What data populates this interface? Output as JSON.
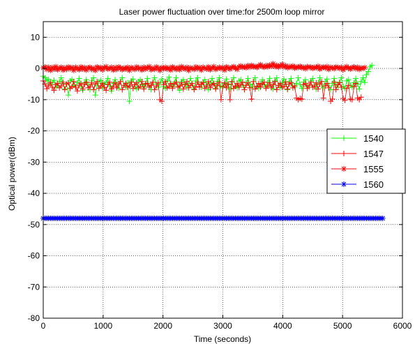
{
  "chart_data": {
    "type": "line",
    "title": "Laser power fluctuation over time:for 2500m loop mirror",
    "xlabel": "Time (seconds)",
    "ylabel": "Optical power(dBm)",
    "xlim": [
      0,
      6000
    ],
    "ylim": [
      -80,
      15
    ],
    "xticks": [
      0,
      1000,
      2000,
      3000,
      4000,
      5000,
      6000
    ],
    "yticks": [
      -80,
      -70,
      -60,
      -50,
      -40,
      -30,
      -20,
      -10,
      0,
      10
    ],
    "grid": true,
    "legend_position": "right",
    "sample_interval_s": 30,
    "series": [
      {
        "name": "1540",
        "color": "#00ff00",
        "marker": "plus",
        "values": [
          -2.5,
          -3.0,
          -4.0,
          -3.5,
          -5.0,
          -4.5,
          -3.8,
          -6.0,
          -5.5,
          -4.2,
          -3.0,
          -4.8,
          -6.5,
          -5.0,
          -8.5,
          -4.0,
          -3.5,
          -5.5,
          -6.0,
          -4.5,
          -3.2,
          -5.8,
          -7.0,
          -4.6,
          -3.6,
          -5.2,
          -6.8,
          -4.0,
          -3.0,
          -8.5,
          -5.5,
          -4.2,
          -3.8,
          -6.2,
          -5.0,
          -4.4,
          -3.2,
          -5.6,
          -7.2,
          -4.8,
          -3.6,
          -5.0,
          -6.4,
          -4.2,
          -3.0,
          -5.4,
          -6.0,
          -4.6,
          -10.5,
          -4.0,
          -3.4,
          -5.8,
          -6.6,
          -4.2,
          -3.6,
          -5.2,
          -6.2,
          -4.8,
          -3.2,
          -5.6,
          -6.8,
          -4.4,
          -3.0,
          -5.0,
          -6.0,
          -4.6,
          -3.4,
          -5.8,
          -6.4,
          -4.0,
          -2.8,
          -5.2,
          -6.0,
          -4.4,
          -3.0,
          -5.6,
          -7.0,
          -4.2,
          -3.6,
          -5.0,
          -6.2,
          -4.8,
          -3.2,
          -5.4,
          -6.6,
          -4.0,
          -3.0,
          -5.8,
          -6.0,
          -4.4,
          -3.6,
          -5.2,
          -6.8,
          -4.6,
          -3.2,
          -5.0,
          -6.4,
          -4.2,
          -3.0,
          -5.6,
          -6.0,
          -4.8,
          -3.4,
          -5.2,
          -6.6,
          -4.4,
          -3.0,
          -5.8,
          -6.2,
          -4.0,
          -3.6,
          -5.4,
          -6.8,
          -4.6,
          -3.2,
          -5.0,
          -6.0,
          -4.2,
          -3.0,
          -5.6,
          -6.4,
          -4.8,
          -3.6,
          -5.2,
          -6.0,
          -4.4,
          -3.2,
          -5.8,
          -6.6,
          -4.0,
          -3.0,
          -5.4,
          -6.2,
          -4.6,
          -3.4,
          -5.0,
          -6.8,
          -4.2,
          -3.2,
          -5.6,
          -6.0,
          -4.8,
          -3.0,
          -5.2,
          -6.4,
          -4.4,
          -3.6,
          -5.8,
          -6.0,
          -4.0,
          -3.2,
          -5.4,
          -6.6,
          -4.6,
          -3.0,
          -5.0,
          -6.2,
          -4.2,
          -3.4,
          -5.6,
          -6.8,
          -4.8,
          -3.2,
          -5.2,
          -6.0,
          -4.4,
          -3.0,
          -5.8,
          -6.4,
          -4.0,
          -3.6,
          -5.4,
          -6.0,
          -4.6,
          -3.2,
          -5.0,
          -6.6,
          -4.2,
          -3.0,
          -4.5,
          -2.0,
          -1.0,
          0.5,
          1.0
        ]
      },
      {
        "name": "1547",
        "color": "#ff0000",
        "marker": "plus",
        "values": [
          -4.0,
          -5.0,
          -6.5,
          -5.5,
          -4.5,
          -6.0,
          -7.0,
          -5.2,
          -4.8,
          -6.2,
          -5.6,
          -4.4,
          -6.8,
          -5.0,
          -4.6,
          -6.4,
          -5.8,
          -4.2,
          -6.0,
          -7.2,
          -5.4,
          -4.8,
          -6.6,
          -5.2,
          -4.4,
          -6.2,
          -5.8,
          -4.6,
          -6.8,
          -5.0,
          -4.2,
          -6.4,
          -5.6,
          -4.8,
          -6.0,
          -7.0,
          -5.2,
          -4.4,
          -6.6,
          -5.8,
          -4.6,
          -6.2,
          -5.0,
          -4.2,
          -6.8,
          -5.4,
          -4.8,
          -6.0,
          -5.6,
          -4.4,
          -6.4,
          -5.2,
          -4.6,
          -6.2,
          -5.8,
          -4.2,
          -6.6,
          -5.0,
          -4.8,
          -6.0,
          -5.4,
          -4.4,
          -6.8,
          -5.6,
          -4.6,
          -10.0,
          -10.5,
          -5.2,
          -4.2,
          -6.2,
          -5.8,
          -4.8,
          -6.4,
          -5.0,
          -4.4,
          -6.0,
          -5.6,
          -4.6,
          -6.6,
          -5.2,
          -4.2,
          -6.2,
          -5.4,
          -4.8,
          -6.8,
          -5.8,
          -4.4,
          -6.0,
          -5.0,
          -4.6,
          -6.4,
          -5.6,
          -4.2,
          -6.2,
          -5.2,
          -4.8,
          -6.6,
          -5.4,
          -4.4,
          -10.0,
          -5.8,
          -4.6,
          -6.2,
          -5.0,
          -10.0,
          -4.2,
          -6.4,
          -5.6,
          -4.8,
          -6.0,
          -5.2,
          -4.4,
          -6.8,
          -5.4,
          -4.6,
          -6.2,
          -9.8,
          -4.2,
          -6.6,
          -5.8,
          -4.8,
          -6.0,
          -5.0,
          -4.4,
          -6.4,
          -5.6,
          -4.6,
          -6.2,
          -5.2,
          -4.2,
          -6.8,
          -5.4,
          -4.8,
          -6.0,
          -5.8,
          -4.4,
          -6.6,
          -5.0,
          -4.6,
          -6.2,
          -5.6,
          -9.5,
          -10.0,
          -9.6,
          -9.8,
          -5.2,
          -4.8,
          -6.4,
          -5.4,
          -4.4,
          -6.0,
          -5.8,
          -4.6,
          -6.6,
          -5.0,
          -4.2,
          -9.5,
          -5.6,
          -4.8,
          -6.2,
          -10.5,
          -9.8,
          -4.4,
          -6.8,
          -5.2,
          -4.6,
          -6.0,
          -9.6,
          -10.2,
          -6.4,
          -5.4,
          -9.8,
          -10.0,
          -5.8,
          -4.8,
          -9.5,
          -10.0,
          -9.2
        ]
      },
      {
        "name": "1555",
        "color": "#ff0000",
        "marker": "asterisk",
        "values": [
          0.2,
          0.5,
          -0.3,
          0.4,
          -0.6,
          0.3,
          -0.2,
          0.6,
          -0.4,
          0.1,
          0.4,
          -0.5,
          0.2,
          -0.3,
          0.5,
          -0.1,
          0.3,
          -0.6,
          0.4,
          0.0,
          -0.4,
          0.5,
          -0.2,
          0.3,
          -0.5,
          0.2,
          0.4,
          -0.3,
          0.1,
          -0.6,
          0.5,
          -0.1,
          0.3,
          -0.4,
          0.2,
          0.6,
          -0.2,
          0.0,
          0.4,
          -0.5,
          0.3,
          -0.3,
          0.5,
          0.1,
          -0.4,
          0.2,
          -0.2,
          0.4,
          -0.6,
          0.3,
          0.0,
          -0.3,
          0.5,
          -0.1,
          0.2,
          -0.5,
          0.4,
          -0.2,
          0.3,
          0.6,
          -0.4,
          0.1,
          -0.3,
          0.5,
          0.0,
          -0.6,
          0.3,
          -0.1,
          0.4,
          -0.2,
          0.2,
          -0.5,
          0.5,
          0.0,
          -0.3,
          0.3,
          -0.4,
          0.6,
          0.1,
          -0.2,
          0.4,
          -0.6,
          0.2,
          0.0,
          -0.3,
          0.5,
          -0.1,
          0.3,
          -0.5,
          0.4,
          0.1,
          -0.2,
          0.5,
          -0.4,
          0.2,
          0.6,
          -0.3,
          0.0,
          0.4,
          -0.1,
          0.3,
          -0.5,
          0.5,
          0.2,
          -0.2,
          0.4,
          0.6,
          0.1,
          -0.3,
          0.5,
          0.8,
          0.3,
          0.6,
          0.2,
          0.9,
          0.4,
          1.0,
          0.5,
          0.7,
          0.3,
          0.8,
          1.2,
          0.6,
          0.4,
          0.9,
          0.5,
          1.1,
          0.7,
          1.5,
          0.6,
          1.0,
          0.4,
          0.8,
          1.3,
          0.5,
          0.9,
          0.2,
          0.6,
          0.4,
          0.8,
          0.1,
          0.5,
          0.3,
          0.7,
          0.2,
          0.4,
          -0.1,
          0.6,
          0.3,
          0.5,
          0.0,
          0.4,
          0.2,
          0.7,
          -0.2,
          0.3,
          0.5,
          0.1,
          0.6,
          -0.3,
          0.4,
          0.2,
          -0.1,
          0.5,
          0.3,
          0.0,
          0.4,
          -0.4,
          0.2,
          0.6,
          0.1,
          -0.2,
          0.3,
          0.5,
          -0.1,
          0.4,
          -0.3,
          0.2,
          0.0,
          0.3
        ]
      },
      {
        "name": "1560",
        "color": "#0000ff",
        "marker": "asterisk",
        "values": [
          -48,
          -48,
          -48,
          -48,
          -48,
          -48,
          -48,
          -48,
          -48,
          -48,
          -48,
          -48,
          -48,
          -48,
          -48,
          -48,
          -48,
          -48,
          -48,
          -48,
          -48,
          -48,
          -48,
          -48,
          -48,
          -48,
          -48,
          -48,
          -48,
          -48,
          -48,
          -48,
          -48,
          -48,
          -48,
          -48,
          -48,
          -48,
          -48,
          -48,
          -48,
          -48,
          -48,
          -48,
          -48,
          -48,
          -48,
          -48,
          -48,
          -48,
          -48,
          -48,
          -48,
          -48,
          -48,
          -48,
          -48,
          -48,
          -48,
          -48,
          -48,
          -48,
          -48,
          -48,
          -48,
          -48,
          -48,
          -48,
          -48,
          -48,
          -48,
          -48,
          -48,
          -48,
          -48,
          -48,
          -48,
          -48,
          -48,
          -48,
          -48,
          -48,
          -48,
          -48,
          -48,
          -48,
          -48,
          -48,
          -48,
          -48,
          -48,
          -48,
          -48,
          -48,
          -48,
          -48,
          -48,
          -48,
          -48,
          -48,
          -48,
          -48,
          -48,
          -48,
          -48,
          -48,
          -48,
          -48,
          -48,
          -48,
          -48,
          -48,
          -48,
          -48,
          -48,
          -48,
          -48,
          -48,
          -48,
          -48,
          -48,
          -48,
          -48,
          -48,
          -48,
          -48,
          -48,
          -48,
          -48,
          -48,
          -48,
          -48,
          -48,
          -48,
          -48,
          -48,
          -48,
          -48,
          -48,
          -48,
          -48,
          -48,
          -48,
          -48,
          -48,
          -48,
          -48,
          -48,
          -48,
          -48,
          -48,
          -48,
          -48,
          -48,
          -48,
          -48,
          -48,
          -48,
          -48,
          -48,
          -48,
          -48,
          -48,
          -48,
          -48,
          -48,
          -48,
          -48,
          -48,
          -48,
          -48,
          -48,
          -48,
          -48,
          -48,
          -48,
          -48,
          -48,
          -48,
          -48,
          -48,
          -48,
          -48,
          -48,
          -48,
          -48,
          -48,
          -48,
          -48,
          -48
        ]
      }
    ]
  }
}
